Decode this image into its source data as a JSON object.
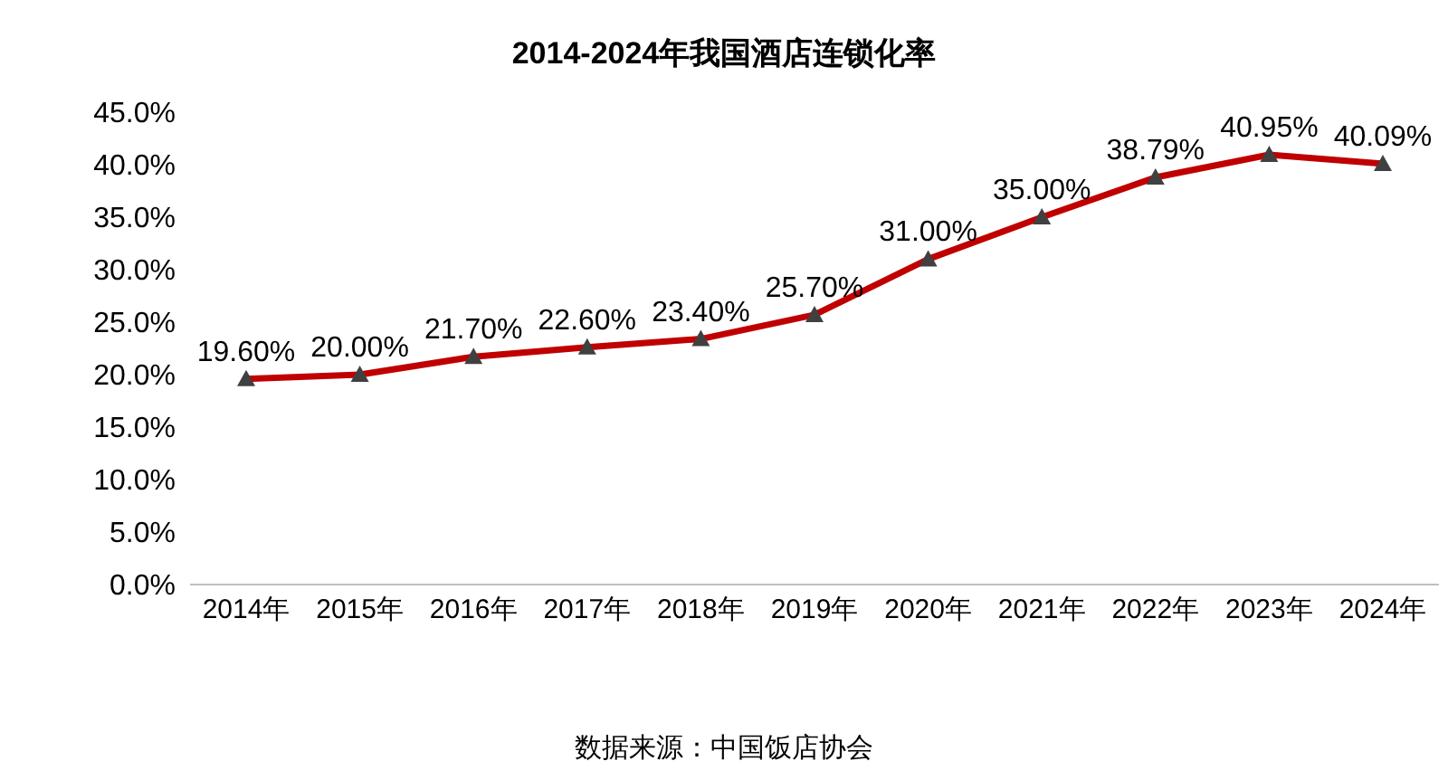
{
  "chart_data": {
    "type": "line",
    "title": "2014-2024年我国酒店连锁化率",
    "categories": [
      "2014年",
      "2015年",
      "2016年",
      "2017年",
      "2018年",
      "2019年",
      "2020年",
      "2021年",
      "2022年",
      "2023年",
      "2024年"
    ],
    "series": [
      {
        "color": "#c00000",
        "values": [
          19.6,
          20.0,
          21.7,
          22.6,
          23.4,
          25.7,
          31.0,
          35.0,
          38.79,
          40.95,
          40.09
        ],
        "value_labels": [
          "19.60%",
          "20.00%",
          "21.70%",
          "22.60%",
          "23.40%",
          "25.70%",
          "31.00%",
          "35.00%",
          "38.79%",
          "40.95%",
          "40.09%"
        ]
      }
    ],
    "ylim": [
      0,
      45
    ],
    "yticks": [
      {
        "value": 0,
        "label": "0.0%"
      },
      {
        "value": 5,
        "label": "5.0%"
      },
      {
        "value": 10,
        "label": "10.0%"
      },
      {
        "value": 15,
        "label": "15.0%"
      },
      {
        "value": 20,
        "label": "20.0%"
      },
      {
        "value": 25,
        "label": "25.0%"
      },
      {
        "value": 30,
        "label": "30.0%"
      },
      {
        "value": 35,
        "label": "35.0%"
      },
      {
        "value": 40,
        "label": "40.0%"
      },
      {
        "value": 45,
        "label": "45.0%"
      }
    ],
    "grid": false,
    "legend": false,
    "marker": "triangle",
    "line_style": "solid",
    "annotations": [
      "数据来源：中国饭店协会"
    ]
  }
}
